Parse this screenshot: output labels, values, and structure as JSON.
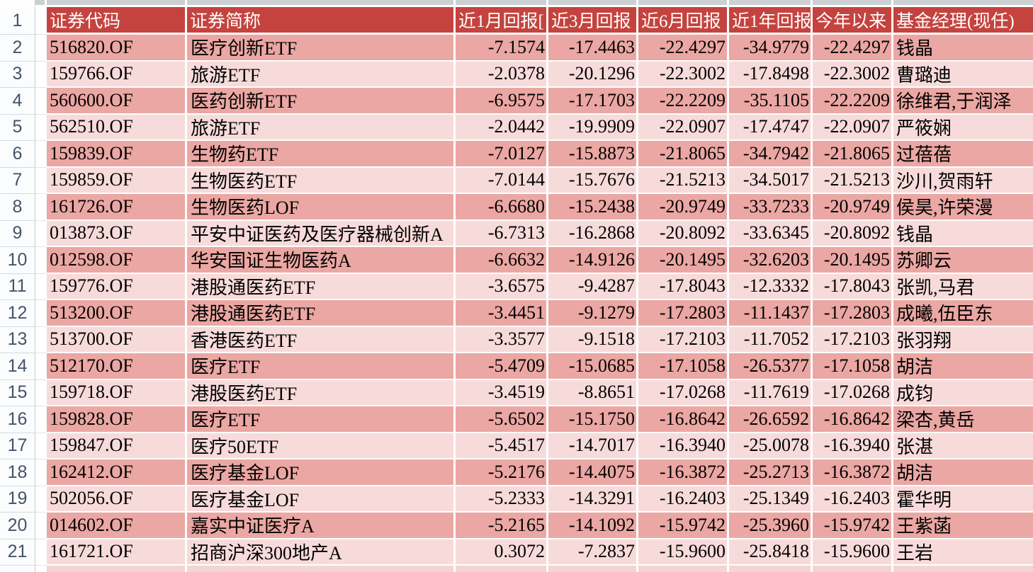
{
  "app": {
    "kind": "spreadsheet-table",
    "colors": {
      "header_red": "#C5433E",
      "row_fill_dark": "#EBA7A3",
      "row_fill_light": "#F7DBDA",
      "partial_row_fill": "#F3D5D4",
      "gridline": "#FFFFFF",
      "chrome_gray": "#CDD0D3",
      "gutter_background": "#FBFCFD",
      "gutter_text": "#44546A",
      "header_text": "#FFFFFF",
      "cell_text": "#000000"
    }
  },
  "table": {
    "header_row_number": "1",
    "columns": [
      {
        "key": "code",
        "label": "证券代码"
      },
      {
        "key": "name",
        "label": "证券简称"
      },
      {
        "key": "m1",
        "label": "近1月回报["
      },
      {
        "key": "m3",
        "label": "近3月回报"
      },
      {
        "key": "m6",
        "label": "近6月回报"
      },
      {
        "key": "y1",
        "label": "近1年回报"
      },
      {
        "key": "ytd",
        "label": "今年以来"
      },
      {
        "key": "mgr",
        "label": "基金经理(现任)"
      }
    ],
    "rows": [
      {
        "row": "2",
        "code": "516820.OF",
        "name": "医疗创新ETF",
        "m1": "-7.1574",
        "m3": "-17.4463",
        "m6": "-22.4297",
        "y1": "-34.9779",
        "ytd": "-22.4297",
        "mgr": "钱晶"
      },
      {
        "row": "3",
        "code": "159766.OF",
        "name": "旅游ETF",
        "m1": "-2.0378",
        "m3": "-20.1296",
        "m6": "-22.3002",
        "y1": "-17.8498",
        "ytd": "-22.3002",
        "mgr": "曹璐迪"
      },
      {
        "row": "4",
        "code": "560600.OF",
        "name": "医药创新ETF",
        "m1": "-6.9575",
        "m3": "-17.1703",
        "m6": "-22.2209",
        "y1": "-35.1105",
        "ytd": "-22.2209",
        "mgr": "徐维君,于润泽"
      },
      {
        "row": "5",
        "code": "562510.OF",
        "name": "旅游ETF",
        "m1": "-2.0442",
        "m3": "-19.9909",
        "m6": "-22.0907",
        "y1": "-17.4747",
        "ytd": "-22.0907",
        "mgr": "严筱娴"
      },
      {
        "row": "6",
        "code": "159839.OF",
        "name": "生物药ETF",
        "m1": "-7.0127",
        "m3": "-15.8873",
        "m6": "-21.8065",
        "y1": "-34.7942",
        "ytd": "-21.8065",
        "mgr": "过蓓蓓"
      },
      {
        "row": "7",
        "code": "159859.OF",
        "name": "生物医药ETF",
        "m1": "-7.0144",
        "m3": "-15.7676",
        "m6": "-21.5213",
        "y1": "-34.5017",
        "ytd": "-21.5213",
        "mgr": "沙川,贺雨轩"
      },
      {
        "row": "8",
        "code": "161726.OF",
        "name": "生物医药LOF",
        "m1": "-6.6680",
        "m3": "-15.2438",
        "m6": "-20.9749",
        "y1": "-33.7233",
        "ytd": "-20.9749",
        "mgr": "侯昊,许荣漫"
      },
      {
        "row": "9",
        "code": "013873.OF",
        "name": "平安中证医药及医疗器械创新A",
        "m1": "-6.7313",
        "m3": "-16.2868",
        "m6": "-20.8092",
        "y1": "-33.6345",
        "ytd": "-20.8092",
        "mgr": "钱晶"
      },
      {
        "row": "10",
        "code": "012598.OF",
        "name": "华安国证生物医药A",
        "m1": "-6.6632",
        "m3": "-14.9126",
        "m6": "-20.1495",
        "y1": "-32.6203",
        "ytd": "-20.1495",
        "mgr": "苏卿云"
      },
      {
        "row": "11",
        "code": "159776.OF",
        "name": "港股通医药ETF",
        "m1": "-3.6575",
        "m3": "-9.4287",
        "m6": "-17.8043",
        "y1": "-12.3332",
        "ytd": "-17.8043",
        "mgr": "张凯,马君"
      },
      {
        "row": "12",
        "code": "513200.OF",
        "name": "港股通医药ETF",
        "m1": "-3.4451",
        "m3": "-9.1279",
        "m6": "-17.2803",
        "y1": "-11.1437",
        "ytd": "-17.2803",
        "mgr": "成曦,伍臣东"
      },
      {
        "row": "13",
        "code": "513700.OF",
        "name": "香港医药ETF",
        "m1": "-3.3577",
        "m3": "-9.1518",
        "m6": "-17.2103",
        "y1": "-11.7052",
        "ytd": "-17.2103",
        "mgr": "张羽翔"
      },
      {
        "row": "14",
        "code": "512170.OF",
        "name": "医疗ETF",
        "m1": "-5.4709",
        "m3": "-15.0685",
        "m6": "-17.1058",
        "y1": "-26.5377",
        "ytd": "-17.1058",
        "mgr": "胡洁"
      },
      {
        "row": "15",
        "code": "159718.OF",
        "name": "港股医药ETF",
        "m1": "-3.4519",
        "m3": "-8.8651",
        "m6": "-17.0268",
        "y1": "-11.7619",
        "ytd": "-17.0268",
        "mgr": "成钧"
      },
      {
        "row": "16",
        "code": "159828.OF",
        "name": "医疗ETF",
        "m1": "-5.6502",
        "m3": "-15.1750",
        "m6": "-16.8642",
        "y1": "-26.6592",
        "ytd": "-16.8642",
        "mgr": "梁杏,黄岳"
      },
      {
        "row": "17",
        "code": "159847.OF",
        "name": "医疗50ETF",
        "m1": "-5.4517",
        "m3": "-14.7017",
        "m6": "-16.3940",
        "y1": "-25.0078",
        "ytd": "-16.3940",
        "mgr": "张湛"
      },
      {
        "row": "18",
        "code": "162412.OF",
        "name": "医疗基金LOF",
        "m1": "-5.2176",
        "m3": "-14.4075",
        "m6": "-16.3872",
        "y1": "-25.2713",
        "ytd": "-16.3872",
        "mgr": "胡洁"
      },
      {
        "row": "19",
        "code": "502056.OF",
        "name": "医疗基金LOF",
        "m1": "-5.2333",
        "m3": "-14.3291",
        "m6": "-16.2403",
        "y1": "-25.1349",
        "ytd": "-16.2403",
        "mgr": "霍华明"
      },
      {
        "row": "20",
        "code": "014602.OF",
        "name": "嘉实中证医疗A",
        "m1": "-5.2165",
        "m3": "-14.1092",
        "m6": "-15.9742",
        "y1": "-25.3960",
        "ytd": "-15.9742",
        "mgr": "王紫菡"
      },
      {
        "row": "21",
        "code": "161721.OF",
        "name": "招商沪深300地产A",
        "m1": "0.3072",
        "m3": "-7.2837",
        "m6": "-15.9600",
        "y1": "-25.8418",
        "ytd": "-15.9600",
        "mgr": "王岩"
      }
    ]
  }
}
